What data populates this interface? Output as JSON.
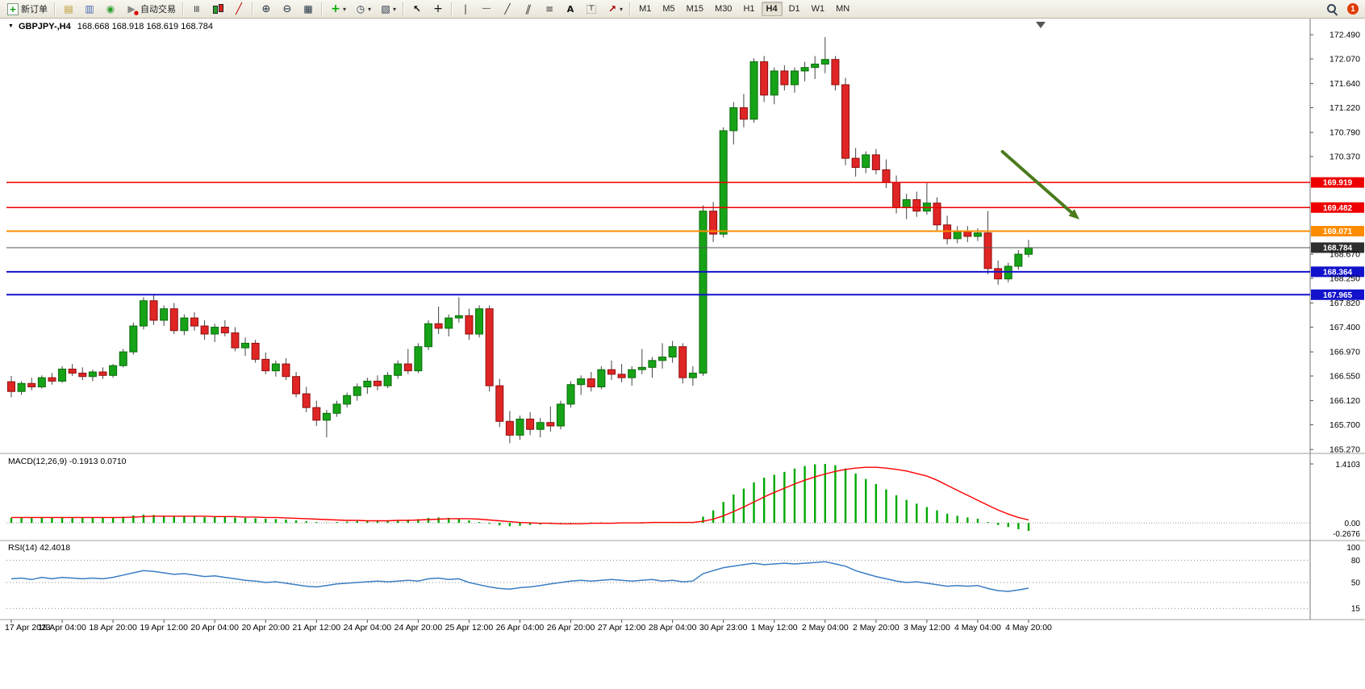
{
  "toolbar": {
    "new_order_label": "新订单",
    "auto_trading_label": "自动交易",
    "timeframes": [
      "M1",
      "M5",
      "M15",
      "M30",
      "H1",
      "H4",
      "D1",
      "W1",
      "MN"
    ],
    "active_timeframe": "H4",
    "notification_count": "1"
  },
  "chart": {
    "symbol_period": "GBPJPY-,H4",
    "ohlc": "168.668 168.918 168.619 168.784",
    "macd_label": "MACD(12,26,9)",
    "macd_values": "-0.1913 0.0710",
    "rsi_label": "RSI(14)",
    "rsi_value": "42.4018"
  },
  "chart_data": {
    "type": "candlestick",
    "symbol": "GBPJPY-",
    "timeframe": "H4",
    "price_axis": {
      "min": 165.23,
      "max": 172.73,
      "ticks": [
        172.49,
        172.07,
        171.64,
        171.22,
        170.79,
        170.37,
        168.67,
        168.25,
        167.82,
        167.4,
        166.97,
        166.55,
        166.12,
        165.7,
        165.27
      ]
    },
    "time_labels": [
      "17 Apr 2023",
      "18 Apr 04:00",
      "18 Apr 20:00",
      "19 Apr 12:00",
      "20 Apr 04:00",
      "20 Apr 20:00",
      "21 Apr 12:00",
      "24 Apr 04:00",
      "24 Apr 20:00",
      "25 Apr 12:00",
      "26 Apr 04:00",
      "26 Apr 20:00",
      "27 Apr 12:00",
      "28 Apr 04:00",
      "30 Apr 23:00",
      "1 May 12:00",
      "2 May 04:00",
      "2 May 20:00",
      "3 May 12:00",
      "4 May 04:00",
      "4 May 20:00"
    ],
    "candles": [
      [
        166.45,
        166.55,
        166.18,
        166.28
      ],
      [
        166.28,
        166.46,
        166.22,
        166.42
      ],
      [
        166.42,
        166.52,
        166.3,
        166.36
      ],
      [
        166.36,
        166.56,
        166.33,
        166.52
      ],
      [
        166.52,
        166.6,
        166.4,
        166.46
      ],
      [
        166.46,
        166.72,
        166.43,
        166.67
      ],
      [
        166.67,
        166.76,
        166.55,
        166.6
      ],
      [
        166.6,
        166.7,
        166.48,
        166.54
      ],
      [
        166.54,
        166.66,
        166.46,
        166.62
      ],
      [
        166.62,
        166.7,
        166.5,
        166.56
      ],
      [
        166.56,
        166.76,
        166.52,
        166.73
      ],
      [
        166.73,
        167.02,
        166.7,
        166.97
      ],
      [
        166.97,
        167.48,
        166.92,
        167.42
      ],
      [
        167.42,
        167.92,
        167.36,
        167.86
      ],
      [
        167.86,
        167.96,
        167.44,
        167.52
      ],
      [
        167.52,
        167.78,
        167.42,
        167.72
      ],
      [
        167.72,
        167.82,
        167.28,
        167.34
      ],
      [
        167.34,
        167.62,
        167.26,
        167.56
      ],
      [
        167.56,
        167.66,
        167.34,
        167.42
      ],
      [
        167.42,
        167.52,
        167.18,
        167.28
      ],
      [
        167.28,
        167.46,
        167.14,
        167.4
      ],
      [
        167.4,
        167.52,
        167.24,
        167.3
      ],
      [
        167.3,
        167.4,
        166.98,
        167.04
      ],
      [
        167.04,
        167.22,
        166.9,
        167.12
      ],
      [
        167.12,
        167.18,
        166.78,
        166.84
      ],
      [
        166.84,
        166.96,
        166.58,
        166.64
      ],
      [
        166.64,
        166.82,
        166.54,
        166.76
      ],
      [
        166.76,
        166.86,
        166.48,
        166.54
      ],
      [
        166.54,
        166.62,
        166.18,
        166.24
      ],
      [
        166.24,
        166.36,
        165.92,
        166.0
      ],
      [
        166.0,
        166.12,
        165.68,
        165.78
      ],
      [
        165.78,
        165.96,
        165.48,
        165.9
      ],
      [
        165.9,
        166.12,
        165.84,
        166.06
      ],
      [
        166.06,
        166.26,
        166.0,
        166.21
      ],
      [
        166.21,
        166.42,
        166.12,
        166.36
      ],
      [
        166.36,
        166.52,
        166.24,
        166.46
      ],
      [
        166.46,
        166.56,
        166.3,
        166.38
      ],
      [
        166.38,
        166.62,
        166.34,
        166.56
      ],
      [
        166.56,
        166.82,
        166.5,
        166.76
      ],
      [
        166.76,
        167.02,
        166.58,
        166.64
      ],
      [
        166.64,
        167.12,
        166.6,
        167.06
      ],
      [
        167.06,
        167.52,
        167.0,
        167.46
      ],
      [
        167.46,
        167.76,
        167.28,
        167.38
      ],
      [
        167.38,
        167.62,
        167.24,
        167.56
      ],
      [
        167.56,
        167.92,
        167.48,
        167.6
      ],
      [
        167.6,
        167.72,
        167.18,
        167.28
      ],
      [
        167.28,
        167.78,
        167.22,
        167.72
      ],
      [
        167.72,
        167.78,
        166.28,
        166.38
      ],
      [
        166.38,
        166.5,
        165.66,
        165.76
      ],
      [
        165.76,
        165.94,
        165.38,
        165.52
      ],
      [
        165.52,
        165.86,
        165.44,
        165.8
      ],
      [
        165.8,
        165.92,
        165.52,
        165.62
      ],
      [
        165.62,
        165.82,
        165.48,
        165.74
      ],
      [
        165.74,
        166.02,
        165.58,
        165.68
      ],
      [
        165.68,
        166.12,
        165.62,
        166.06
      ],
      [
        166.06,
        166.46,
        166.0,
        166.4
      ],
      [
        166.4,
        166.56,
        166.22,
        166.5
      ],
      [
        166.5,
        166.62,
        166.28,
        166.36
      ],
      [
        166.36,
        166.72,
        166.32,
        166.66
      ],
      [
        166.66,
        166.82,
        166.48,
        166.58
      ],
      [
        166.58,
        166.76,
        166.44,
        166.52
      ],
      [
        166.52,
        166.72,
        166.38,
        166.66
      ],
      [
        166.66,
        167.02,
        166.58,
        166.7
      ],
      [
        166.7,
        166.88,
        166.52,
        166.82
      ],
      [
        166.82,
        167.12,
        166.68,
        166.88
      ],
      [
        166.88,
        167.16,
        166.78,
        167.06
      ],
      [
        167.06,
        167.12,
        166.42,
        166.52
      ],
      [
        166.52,
        166.72,
        166.38,
        166.6
      ],
      [
        166.6,
        169.52,
        166.55,
        169.42
      ],
      [
        169.42,
        169.58,
        168.88,
        169.02
      ],
      [
        169.02,
        170.88,
        168.96,
        170.82
      ],
      [
        170.82,
        171.32,
        170.58,
        171.22
      ],
      [
        171.22,
        171.46,
        170.88,
        171.02
      ],
      [
        171.02,
        172.08,
        170.96,
        172.02
      ],
      [
        172.02,
        172.12,
        171.32,
        171.44
      ],
      [
        171.44,
        171.92,
        171.28,
        171.86
      ],
      [
        171.86,
        171.96,
        171.52,
        171.62
      ],
      [
        171.62,
        171.92,
        171.48,
        171.86
      ],
      [
        171.86,
        172.02,
        171.68,
        171.92
      ],
      [
        171.92,
        172.12,
        171.72,
        171.98
      ],
      [
        171.98,
        172.45,
        171.82,
        172.06
      ],
      [
        172.06,
        172.12,
        171.52,
        171.62
      ],
      [
        171.62,
        171.74,
        170.22,
        170.34
      ],
      [
        170.34,
        170.52,
        170.02,
        170.18
      ],
      [
        170.18,
        170.46,
        170.08,
        170.4
      ],
      [
        170.4,
        170.5,
        170.06,
        170.14
      ],
      [
        170.14,
        170.32,
        169.82,
        169.92
      ],
      [
        169.92,
        170.04,
        169.38,
        169.48
      ],
      [
        169.48,
        169.72,
        169.28,
        169.62
      ],
      [
        169.62,
        169.76,
        169.32,
        169.42
      ],
      [
        169.42,
        169.92,
        169.36,
        169.56
      ],
      [
        169.56,
        169.66,
        169.06,
        169.18
      ],
      [
        169.18,
        169.34,
        168.84,
        168.94
      ],
      [
        168.94,
        169.16,
        168.86,
        169.06
      ],
      [
        169.06,
        169.16,
        168.88,
        168.98
      ],
      [
        168.98,
        169.12,
        168.9,
        169.04
      ],
      [
        169.04,
        169.42,
        168.32,
        168.42
      ],
      [
        168.42,
        168.56,
        168.14,
        168.24
      ],
      [
        168.24,
        168.52,
        168.18,
        168.46
      ],
      [
        168.46,
        168.74,
        168.4,
        168.67
      ],
      [
        168.668,
        168.918,
        168.619,
        168.784
      ]
    ],
    "hlines": [
      {
        "price": 169.919,
        "color": "#ee0000",
        "width": 1.5
      },
      {
        "price": 169.482,
        "color": "#ee0000",
        "width": 1.5
      },
      {
        "price": 169.071,
        "color": "#ff8c00",
        "width": 2
      },
      {
        "price": 168.364,
        "color": "#1212cc",
        "width": 2
      },
      {
        "price": 167.965,
        "color": "#1212cc",
        "width": 2
      }
    ],
    "bid_line": {
      "price": 168.784,
      "color": "#555555",
      "badge_bg": "#2e2e2e"
    },
    "last_ohlc": {
      "open": 168.668,
      "high": 168.918,
      "low": 168.619,
      "close": 168.784
    },
    "annotation_arrow": {
      "x1_frac": 0.764,
      "price1": 170.455,
      "x2_frac": 0.823,
      "price2": 169.275,
      "color": "#4b7b1d"
    },
    "macd": {
      "params": "12,26,9",
      "value": -0.1913,
      "signal_value": 0.071,
      "axis_max": 1.4103,
      "axis_min": -0.2676,
      "scale_labels": [
        "1.4103",
        "0.00",
        "-0.2676"
      ],
      "histogram_color": "#00a800",
      "signal_color": "#ff0000",
      "histogram": [
        0.12,
        0.13,
        0.12,
        0.14,
        0.13,
        0.14,
        0.13,
        0.12,
        0.13,
        0.12,
        0.13,
        0.15,
        0.18,
        0.2,
        0.19,
        0.17,
        0.16,
        0.16,
        0.15,
        0.14,
        0.15,
        0.14,
        0.13,
        0.12,
        0.11,
        0.1,
        0.09,
        0.08,
        0.06,
        0.04,
        0.02,
        0.01,
        0.02,
        0.03,
        0.04,
        0.05,
        0.06,
        0.06,
        0.07,
        0.08,
        0.09,
        0.12,
        0.13,
        0.12,
        0.1,
        0.06,
        0.02,
        -0.02,
        -0.06,
        -0.08,
        -0.07,
        -0.05,
        -0.04,
        -0.03,
        -0.02,
        -0.01,
        0.0,
        0.01,
        0.01,
        0.0,
        0.0,
        0.01,
        0.02,
        0.02,
        0.01,
        0.02,
        0.01,
        0.02,
        0.15,
        0.3,
        0.5,
        0.68,
        0.82,
        0.97,
        1.08,
        1.15,
        1.22,
        1.3,
        1.36,
        1.4,
        1.41,
        1.38,
        1.3,
        1.18,
        1.05,
        0.93,
        0.8,
        0.66,
        0.55,
        0.46,
        0.38,
        0.3,
        0.22,
        0.17,
        0.13,
        0.1,
        0.02,
        -0.05,
        -0.1,
        -0.15,
        -0.1913
      ],
      "signal": [
        0.13,
        0.13,
        0.13,
        0.13,
        0.13,
        0.13,
        0.13,
        0.13,
        0.13,
        0.13,
        0.13,
        0.13,
        0.14,
        0.15,
        0.16,
        0.16,
        0.16,
        0.16,
        0.16,
        0.16,
        0.15,
        0.15,
        0.15,
        0.14,
        0.14,
        0.13,
        0.13,
        0.12,
        0.11,
        0.1,
        0.09,
        0.08,
        0.07,
        0.06,
        0.06,
        0.05,
        0.05,
        0.05,
        0.06,
        0.06,
        0.07,
        0.08,
        0.09,
        0.1,
        0.1,
        0.1,
        0.09,
        0.07,
        0.05,
        0.03,
        0.01,
        0.0,
        -0.01,
        -0.01,
        -0.02,
        -0.02,
        -0.02,
        -0.01,
        -0.01,
        -0.01,
        0.0,
        0.0,
        0.0,
        0.01,
        0.01,
        0.01,
        0.01,
        0.01,
        0.04,
        0.09,
        0.17,
        0.27,
        0.38,
        0.5,
        0.62,
        0.73,
        0.83,
        0.93,
        1.02,
        1.1,
        1.17,
        1.23,
        1.28,
        1.31,
        1.33,
        1.33,
        1.31,
        1.28,
        1.24,
        1.18,
        1.12,
        1.02,
        0.9,
        0.78,
        0.66,
        0.54,
        0.42,
        0.31,
        0.21,
        0.13,
        0.071
      ]
    },
    "rsi": {
      "period": 14,
      "value": 42.4018,
      "color": "#3b7dc4",
      "levels": [
        80,
        50,
        15
      ],
      "scale_labels": [
        "100",
        "80",
        "50",
        "15"
      ],
      "values": [
        55,
        56,
        54,
        57,
        55,
        57,
        56,
        55,
        56,
        55,
        57,
        60,
        63,
        66,
        65,
        63,
        61,
        62,
        60,
        58,
        59,
        57,
        55,
        53,
        52,
        50,
        51,
        49,
        47,
        45,
        44,
        46,
        48,
        49,
        50,
        51,
        52,
        51,
        52,
        53,
        52,
        55,
        56,
        54,
        55,
        50,
        47,
        44,
        42,
        41,
        43,
        44,
        46,
        48,
        50,
        52,
        53,
        52,
        53,
        54,
        53,
        52,
        53,
        54,
        52,
        53,
        51,
        52,
        62,
        66,
        70,
        72,
        74,
        76,
        74,
        75,
        76,
        75,
        76,
        77,
        78,
        75,
        72,
        66,
        62,
        58,
        55,
        52,
        50,
        51,
        49,
        47,
        45,
        46,
        45,
        46,
        42,
        39,
        38,
        40,
        42.4
      ]
    },
    "colors": {
      "up": "#17a317",
      "down": "#e02525",
      "wick": "#444444",
      "background": "#ffffff"
    }
  }
}
